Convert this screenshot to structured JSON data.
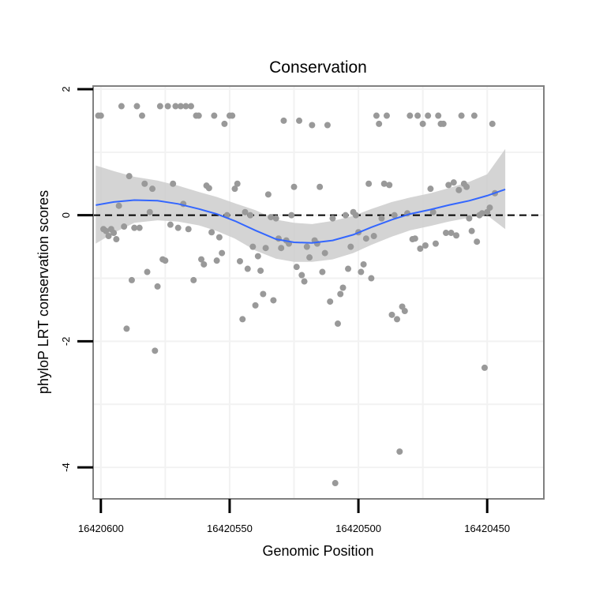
{
  "chart_data": {
    "type": "scatter",
    "title": "Conservation",
    "xlabel": "Genomic Position",
    "ylabel": "phyloP LRT conservation scores",
    "xlim": [
      16420603,
      16420428
    ],
    "ylim": [
      -4.5,
      2.05
    ],
    "x_reversed": true,
    "xticks": [
      16420600,
      16420550,
      16420500,
      16420450
    ],
    "xtick_labels": [
      "16420600",
      "16420550",
      "16420500",
      "16420450"
    ],
    "yticks": [
      2,
      0,
      -2,
      -4
    ],
    "ytick_labels": [
      "2",
      "0",
      "-2",
      "-4"
    ],
    "reference_line": {
      "y": 0,
      "style": "dashed",
      "color": "#000000"
    },
    "grid": true,
    "colors": {
      "points": "#999999",
      "smooth": "#3366ff",
      "ribbon": "#cccccc",
      "panel_border": "#808080",
      "grid": "#f2f2f2"
    },
    "smooth": {
      "x": [
        16420602,
        16420595,
        16420587,
        16420578,
        16420570,
        16420562,
        16420555,
        16420548,
        16420540,
        16420532,
        16420525,
        16420518,
        16420510,
        16420502,
        16420495,
        16420487,
        16420480,
        16420472,
        16420465,
        16420457,
        16420450,
        16420443
      ],
      "y": [
        0.16,
        0.21,
        0.24,
        0.23,
        0.18,
        0.1,
        0.02,
        -0.09,
        -0.24,
        -0.38,
        -0.43,
        -0.44,
        -0.4,
        -0.31,
        -0.19,
        -0.07,
        0.02,
        0.09,
        0.16,
        0.23,
        0.31,
        0.41
      ],
      "lower": [
        -0.45,
        -0.28,
        -0.12,
        -0.08,
        -0.1,
        -0.16,
        -0.25,
        -0.37,
        -0.56,
        -0.69,
        -0.74,
        -0.74,
        -0.7,
        -0.6,
        -0.47,
        -0.34,
        -0.24,
        -0.17,
        -0.1,
        -0.04,
        0.0,
        -0.22
      ],
      "upper": [
        0.79,
        0.7,
        0.61,
        0.55,
        0.47,
        0.37,
        0.29,
        0.19,
        0.08,
        -0.07,
        -0.12,
        -0.14,
        -0.09,
        -0.01,
        0.1,
        0.21,
        0.28,
        0.35,
        0.43,
        0.53,
        0.65,
        1.05
      ]
    },
    "points": [
      {
        "x": 16420601,
        "y": 1.58
      },
      {
        "x": 16420600,
        "y": 1.58
      },
      {
        "x": 16420599,
        "y": -0.22
      },
      {
        "x": 16420598,
        "y": -0.25
      },
      {
        "x": 16420597,
        "y": -0.33
      },
      {
        "x": 16420596,
        "y": -0.22
      },
      {
        "x": 16420595,
        "y": -0.28
      },
      {
        "x": 16420594,
        "y": -0.38
      },
      {
        "x": 16420593,
        "y": 0.15
      },
      {
        "x": 16420592,
        "y": 1.73
      },
      {
        "x": 16420591,
        "y": -0.18
      },
      {
        "x": 16420590,
        "y": -1.8
      },
      {
        "x": 16420589,
        "y": 0.62
      },
      {
        "x": 16420588,
        "y": -1.03
      },
      {
        "x": 16420587,
        "y": -0.2
      },
      {
        "x": 16420586,
        "y": 1.73
      },
      {
        "x": 16420585,
        "y": -0.2
      },
      {
        "x": 16420584,
        "y": 1.58
      },
      {
        "x": 16420583,
        "y": 0.5
      },
      {
        "x": 16420582,
        "y": -0.9
      },
      {
        "x": 16420581,
        "y": 0.05
      },
      {
        "x": 16420580,
        "y": 0.42
      },
      {
        "x": 16420579,
        "y": -2.15
      },
      {
        "x": 16420578,
        "y": -1.13
      },
      {
        "x": 16420577,
        "y": 1.73
      },
      {
        "x": 16420576,
        "y": -0.7
      },
      {
        "x": 16420575,
        "y": -0.72
      },
      {
        "x": 16420574,
        "y": 1.73
      },
      {
        "x": 16420573,
        "y": -0.15
      },
      {
        "x": 16420572,
        "y": 0.5
      },
      {
        "x": 16420571,
        "y": 1.73
      },
      {
        "x": 16420570,
        "y": -0.2
      },
      {
        "x": 16420569,
        "y": 1.73
      },
      {
        "x": 16420568,
        "y": 0.18
      },
      {
        "x": 16420567,
        "y": 1.73
      },
      {
        "x": 16420566,
        "y": -0.22
      },
      {
        "x": 16420565,
        "y": 1.73
      },
      {
        "x": 16420564,
        "y": -1.03
      },
      {
        "x": 16420563,
        "y": 1.58
      },
      {
        "x": 16420562,
        "y": 1.58
      },
      {
        "x": 16420561,
        "y": -0.7
      },
      {
        "x": 16420560,
        "y": -0.78
      },
      {
        "x": 16420559,
        "y": 0.47
      },
      {
        "x": 16420558,
        "y": 0.43
      },
      {
        "x": 16420557,
        "y": -0.27
      },
      {
        "x": 16420556,
        "y": 1.58
      },
      {
        "x": 16420555,
        "y": -0.72
      },
      {
        "x": 16420554,
        "y": -0.35
      },
      {
        "x": 16420553,
        "y": -0.6
      },
      {
        "x": 16420552,
        "y": 1.45
      },
      {
        "x": 16420551,
        "y": 0.0
      },
      {
        "x": 16420550,
        "y": 1.58
      },
      {
        "x": 16420549,
        "y": 1.58
      },
      {
        "x": 16420548,
        "y": 0.42
      },
      {
        "x": 16420547,
        "y": 0.5
      },
      {
        "x": 16420546,
        "y": -0.73
      },
      {
        "x": 16420545,
        "y": -1.65
      },
      {
        "x": 16420544,
        "y": 0.05
      },
      {
        "x": 16420543,
        "y": -0.85
      },
      {
        "x": 16420542,
        "y": 0.0
      },
      {
        "x": 16420541,
        "y": -0.5
      },
      {
        "x": 16420540,
        "y": -1.43
      },
      {
        "x": 16420539,
        "y": -0.65
      },
      {
        "x": 16420538,
        "y": -0.88
      },
      {
        "x": 16420537,
        "y": -1.25
      },
      {
        "x": 16420536,
        "y": -0.52
      },
      {
        "x": 16420535,
        "y": 0.33
      },
      {
        "x": 16420534,
        "y": -0.03
      },
      {
        "x": 16420533,
        "y": -1.35
      },
      {
        "x": 16420532,
        "y": -0.05
      },
      {
        "x": 16420531,
        "y": -0.37
      },
      {
        "x": 16420530,
        "y": -0.52
      },
      {
        "x": 16420529,
        "y": 1.5
      },
      {
        "x": 16420528,
        "y": -0.4
      },
      {
        "x": 16420527,
        "y": -0.45
      },
      {
        "x": 16420526,
        "y": 0.0
      },
      {
        "x": 16420525,
        "y": 0.45
      },
      {
        "x": 16420524,
        "y": -0.82
      },
      {
        "x": 16420523,
        "y": 1.5
      },
      {
        "x": 16420522,
        "y": -0.95
      },
      {
        "x": 16420521,
        "y": -1.05
      },
      {
        "x": 16420520,
        "y": -0.5
      },
      {
        "x": 16420519,
        "y": -0.67
      },
      {
        "x": 16420518,
        "y": 1.43
      },
      {
        "x": 16420517,
        "y": -0.4
      },
      {
        "x": 16420516,
        "y": -0.45
      },
      {
        "x": 16420515,
        "y": 0.45
      },
      {
        "x": 16420514,
        "y": -0.9
      },
      {
        "x": 16420513,
        "y": -0.6
      },
      {
        "x": 16420512,
        "y": 1.43
      },
      {
        "x": 16420511,
        "y": -1.37
      },
      {
        "x": 16420510,
        "y": -0.05
      },
      {
        "x": 16420509,
        "y": -4.25
      },
      {
        "x": 16420508,
        "y": -1.72
      },
      {
        "x": 16420507,
        "y": -1.25
      },
      {
        "x": 16420506,
        "y": -1.15
      },
      {
        "x": 16420505,
        "y": 0.0
      },
      {
        "x": 16420504,
        "y": -0.85
      },
      {
        "x": 16420503,
        "y": -0.5
      },
      {
        "x": 16420502,
        "y": 0.05
      },
      {
        "x": 16420501,
        "y": 0.0
      },
      {
        "x": 16420500,
        "y": -0.27
      },
      {
        "x": 16420499,
        "y": -0.9
      },
      {
        "x": 16420498,
        "y": -0.78
      },
      {
        "x": 16420497,
        "y": -0.37
      },
      {
        "x": 16420496,
        "y": 0.5
      },
      {
        "x": 16420495,
        "y": -1.0
      },
      {
        "x": 16420494,
        "y": -0.33
      },
      {
        "x": 16420493,
        "y": 1.58
      },
      {
        "x": 16420492,
        "y": 1.45
      },
      {
        "x": 16420491,
        "y": -0.05
      },
      {
        "x": 16420490,
        "y": 0.5
      },
      {
        "x": 16420489,
        "y": 1.58
      },
      {
        "x": 16420488,
        "y": 0.48
      },
      {
        "x": 16420487,
        "y": -1.58
      },
      {
        "x": 16420486,
        "y": 0.0
      },
      {
        "x": 16420485,
        "y": -1.65
      },
      {
        "x": 16420484,
        "y": -3.75
      },
      {
        "x": 16420483,
        "y": -1.45
      },
      {
        "x": 16420482,
        "y": -1.52
      },
      {
        "x": 16420481,
        "y": 0.03
      },
      {
        "x": 16420480,
        "y": 1.58
      },
      {
        "x": 16420479,
        "y": -0.38
      },
      {
        "x": 16420478,
        "y": -0.37
      },
      {
        "x": 16420477,
        "y": 1.58
      },
      {
        "x": 16420476,
        "y": -0.53
      },
      {
        "x": 16420475,
        "y": 1.45
      },
      {
        "x": 16420474,
        "y": -0.48
      },
      {
        "x": 16420473,
        "y": 1.58
      },
      {
        "x": 16420472,
        "y": 0.42
      },
      {
        "x": 16420471,
        "y": 0.05
      },
      {
        "x": 16420470,
        "y": -0.45
      },
      {
        "x": 16420469,
        "y": 1.58
      },
      {
        "x": 16420468,
        "y": 1.45
      },
      {
        "x": 16420467,
        "y": 1.45
      },
      {
        "x": 16420466,
        "y": -0.28
      },
      {
        "x": 16420465,
        "y": 0.48
      },
      {
        "x": 16420464,
        "y": -0.28
      },
      {
        "x": 16420463,
        "y": 0.52
      },
      {
        "x": 16420462,
        "y": -0.32
      },
      {
        "x": 16420461,
        "y": 0.4
      },
      {
        "x": 16420460,
        "y": 1.58
      },
      {
        "x": 16420459,
        "y": 0.5
      },
      {
        "x": 16420458,
        "y": 0.45
      },
      {
        "x": 16420457,
        "y": -0.05
      },
      {
        "x": 16420456,
        "y": -0.25
      },
      {
        "x": 16420455,
        "y": 1.58
      },
      {
        "x": 16420454,
        "y": -0.42
      },
      {
        "x": 16420453,
        "y": 0.0
      },
      {
        "x": 16420452,
        "y": 0.03
      },
      {
        "x": 16420451,
        "y": -2.42
      },
      {
        "x": 16420450,
        "y": 0.05
      },
      {
        "x": 16420449,
        "y": 0.12
      },
      {
        "x": 16420448,
        "y": 1.45
      },
      {
        "x": 16420447,
        "y": 0.35
      }
    ]
  }
}
